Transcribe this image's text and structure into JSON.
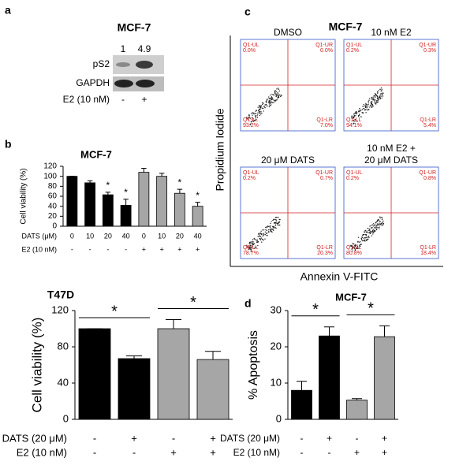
{
  "panel_labels": [
    "a",
    "b",
    "c",
    "d"
  ],
  "blot": {
    "title": "MCF-7",
    "ratios": [
      1,
      4.9
    ],
    "bands": [
      "pS2",
      "GAPDH"
    ],
    "treatment": "E2 (10 nM)",
    "lanes": [
      "-",
      "+"
    ]
  },
  "flow": {
    "title": "MCF-7",
    "y_label": "Propidium Iodide",
    "x_label": "Annexin V-FITC",
    "plots": [
      {
        "label": [
          "DMSO"
        ],
        "quadrants": [
          {
            "name": "Q1-UL",
            "value": "0.0%"
          },
          {
            "name": "Q1-UR",
            "value": "0.0%"
          },
          {
            "name": "Q1-LL",
            "value": "93.2%"
          },
          {
            "name": "Q1-LR",
            "value": "7.0%"
          }
        ]
      },
      {
        "label": [
          "10 nM E2"
        ],
        "quadrants": [
          {
            "name": "Q1-UL",
            "value": "0.2%"
          },
          {
            "name": "Q1-UR",
            "value": "0.3%"
          },
          {
            "name": "Q1-LL",
            "value": "94.1%"
          },
          {
            "name": "Q1-LR",
            "value": "5.4%"
          }
        ]
      },
      {
        "label": [
          "20 μM DATS"
        ],
        "quadrants": [
          {
            "name": "Q1-UL",
            "value": "0.2%"
          },
          {
            "name": "Q1-UR",
            "value": "0.7%"
          },
          {
            "name": "Q1-LL",
            "value": "78.7%"
          },
          {
            "name": "Q1-LR",
            "value": "20.3%"
          }
        ]
      },
      {
        "label": [
          "10 nM E2 +",
          "20 μM DATS"
        ],
        "quadrants": [
          {
            "name": "Q1-UL",
            "value": "0.2%"
          },
          {
            "name": "Q1-UR",
            "value": "0.8%"
          },
          {
            "name": "Q1-LL",
            "value": "80.8%"
          },
          {
            "name": "Q1-LR",
            "value": "18.4%"
          }
        ]
      }
    ]
  },
  "chart_data": [
    {
      "type": "bar",
      "title": "MCF-7",
      "y_label": "Cell viability (%)",
      "values": [
        100,
        87,
        63,
        42,
        108,
        100,
        66,
        40
      ],
      "errors": [
        0,
        4,
        5,
        12,
        8,
        6,
        8,
        8
      ],
      "colors": [
        "#000000",
        "#000000",
        "#000000",
        "#000000",
        "#a6a6a6",
        "#a6a6a6",
        "#a6a6a6",
        "#a6a6a6"
      ],
      "markers": [
        null,
        null,
        "*",
        "*",
        null,
        null,
        "*",
        "*"
      ],
      "rows": [
        {
          "label": "DATS (μM)",
          "values": [
            "0",
            "10",
            "20",
            "40",
            "0",
            "10",
            "20",
            "40"
          ]
        },
        {
          "label": "E2 (10 nM)",
          "values": [
            "-",
            "-",
            "-",
            "-",
            "+",
            "+",
            "+",
            "+"
          ]
        }
      ],
      "ylim": [
        0,
        120
      ],
      "yticks": [
        0,
        20,
        40,
        60,
        80,
        100,
        120
      ]
    },
    {
      "type": "bar",
      "title": "T47D",
      "y_label": "Cell viability (%)",
      "values": [
        100,
        67,
        100,
        66
      ],
      "errors": [
        0,
        3,
        10,
        9
      ],
      "colors": [
        "#000000",
        "#000000",
        "#a6a6a6",
        "#a6a6a6"
      ],
      "comparisons": [
        {
          "text": "*",
          "categories": [
            0,
            1
          ]
        },
        {
          "text": "*",
          "categories": [
            2,
            3
          ]
        }
      ],
      "rows": [
        {
          "label": "DATS (20 μM)",
          "values": [
            "-",
            "+",
            "-",
            "+"
          ]
        },
        {
          "label": "E2 (10 nM)",
          "values": [
            "-",
            "-",
            "+",
            "+"
          ]
        }
      ],
      "ylim": [
        0,
        120
      ],
      "yticks": [
        0,
        40,
        80,
        120
      ]
    },
    {
      "type": "bar",
      "title": "MCF-7",
      "y_label": "% Apoptosis",
      "values": [
        8,
        23,
        5.3,
        22.8
      ],
      "errors": [
        2.5,
        2.5,
        0.4,
        3
      ],
      "colors": [
        "#000000",
        "#000000",
        "#a6a6a6",
        "#a6a6a6"
      ],
      "comparisons": [
        {
          "text": "*",
          "categories": [
            0,
            1
          ]
        },
        {
          "text": "*",
          "categories": [
            2,
            3
          ]
        }
      ],
      "rows": [
        {
          "label": "DATS (20 μM)",
          "values": [
            "-",
            "+",
            "-",
            "+"
          ]
        },
        {
          "label": "E2 (10 nM)",
          "values": [
            "-",
            "-",
            "+",
            "+"
          ]
        }
      ],
      "ylim": [
        0,
        30
      ],
      "yticks": [
        0,
        10,
        20,
        30
      ]
    }
  ]
}
